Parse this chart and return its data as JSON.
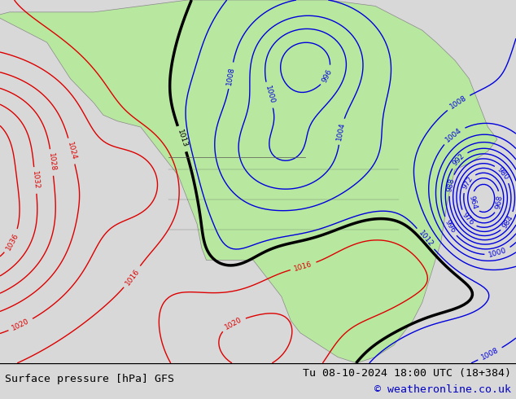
{
  "title_left": "Surface pressure [hPa] GFS",
  "title_right": "Tu 08-10-2024 18:00 UTC (18+384)",
  "copyright": "© weatheronline.co.uk",
  "bg_color": "#d8d8d8",
  "land_color": "#b8e8a0",
  "ocean_color": "#d8d8d8",
  "bottom_bar_color": "#f0f0f0",
  "title_fontsize": 10,
  "copyright_color": "#0000cc"
}
